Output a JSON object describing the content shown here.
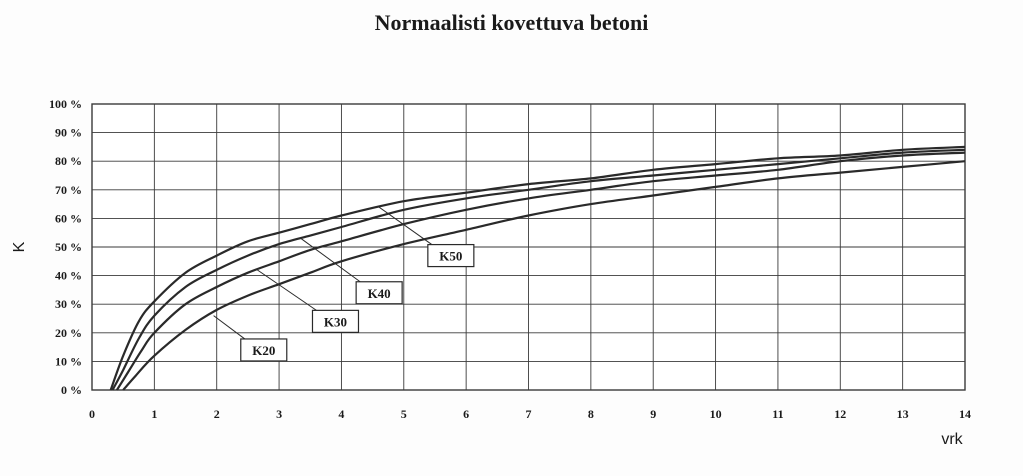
{
  "chart_data": {
    "type": "line",
    "title": "Normaalisti kovettuva  betoni",
    "xlabel": "vrk",
    "ylabel": "K",
    "xlim": [
      0,
      14
    ],
    "ylim": [
      0,
      100
    ],
    "x_ticks": [
      "0",
      "1",
      "2",
      "3",
      "4",
      "5",
      "6",
      "7",
      "8",
      "9",
      "10",
      "11",
      "12",
      "13",
      "14"
    ],
    "y_ticks": [
      "0 %",
      "10 %",
      "20 %",
      "30 %",
      "40 %",
      "50 %",
      "60 %",
      "70 %",
      "80 %",
      "90 %",
      "100 %"
    ],
    "grid": true,
    "series": [
      {
        "name": "K50",
        "x": [
          0.3,
          0.5,
          0.75,
          1,
          1.5,
          2,
          2.5,
          3,
          3.5,
          4,
          5,
          6,
          7,
          8,
          9,
          10,
          11,
          12,
          13,
          14
        ],
        "y": [
          0,
          12,
          24,
          31,
          41,
          47,
          52,
          55,
          58,
          61,
          66,
          69,
          72,
          74,
          77,
          79,
          81,
          82,
          84,
          85
        ]
      },
      {
        "name": "K40",
        "x": [
          0.33,
          0.5,
          0.75,
          1,
          1.5,
          2,
          2.5,
          3,
          3.5,
          4,
          5,
          6,
          7,
          8,
          9,
          10,
          11,
          12,
          13,
          14
        ],
        "y": [
          0,
          7,
          18,
          26,
          36,
          42,
          47,
          51,
          54,
          57,
          63,
          67,
          70,
          73,
          75,
          77,
          79,
          81,
          83,
          84
        ]
      },
      {
        "name": "K30",
        "x": [
          0.4,
          0.6,
          0.8,
          1,
          1.5,
          2,
          2.5,
          3,
          3.5,
          4,
          5,
          6,
          7,
          8,
          9,
          10,
          11,
          12,
          13,
          14
        ],
        "y": [
          0,
          7,
          14,
          20,
          30,
          36,
          41,
          45,
          49,
          52,
          58,
          63,
          67,
          70,
          73,
          75,
          77,
          80,
          82,
          83
        ]
      },
      {
        "name": "K20",
        "x": [
          0.5,
          0.7,
          1,
          1.5,
          2,
          2.5,
          3,
          3.5,
          4,
          5,
          6,
          7,
          8,
          9,
          10,
          11,
          12,
          13,
          14
        ],
        "y": [
          0,
          5,
          12,
          21,
          28,
          33,
          37,
          41,
          45,
          51,
          56,
          61,
          65,
          68,
          71,
          74,
          76,
          78,
          80
        ]
      }
    ],
    "annotations": [
      {
        "series": "K50",
        "text": "K50",
        "point_x": 4.6,
        "point_y": 64,
        "label_x": 5.45,
        "label_y": 47
      },
      {
        "series": "K40",
        "text": "K40",
        "point_x": 3.35,
        "point_y": 53,
        "label_x": 4.3,
        "label_y": 34
      },
      {
        "series": "K30",
        "text": "K30",
        "point_x": 2.65,
        "point_y": 42,
        "label_x": 3.6,
        "label_y": 24
      },
      {
        "series": "K20",
        "text": "K20",
        "point_x": 1.95,
        "point_y": 26,
        "label_x": 2.45,
        "label_y": 14
      }
    ],
    "colors": {
      "line": "#2a2a2a",
      "grid": "#3a3a3a"
    }
  }
}
